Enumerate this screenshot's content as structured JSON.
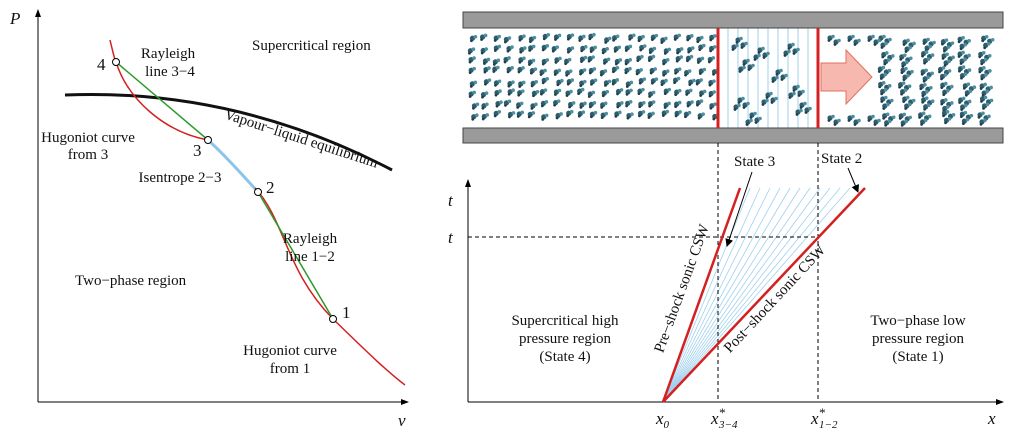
{
  "left": {
    "axis_y": "P",
    "axis_x": "v",
    "supercritical": "Supercritical region",
    "rayleigh_34": [
      "Rayleigh",
      "line 3−4"
    ],
    "vle": "Vapour−liquid equilibrium",
    "hugoniot_3": [
      "Hugoniot curve",
      "from 3"
    ],
    "isentrope": "Isentrope 2−3",
    "rayleigh_12": [
      "Rayleigh",
      "line 1−2"
    ],
    "two_phase": "Two−phase region",
    "hugoniot_1": [
      "Hugoniot curve",
      "from 1"
    ],
    "points": [
      "1",
      "2",
      "3",
      "4"
    ]
  },
  "right": {
    "state3": "State 3",
    "state2": "State 2",
    "axis_t": "t",
    "t_mark": "t",
    "axis_x": "x",
    "x0": {
      "main": "x",
      "sub": "0"
    },
    "x34": {
      "main": "x",
      "sup": "*",
      "sub": "3−4"
    },
    "x12": {
      "main": "x",
      "sup": "*",
      "sub": "1−2"
    },
    "pre_shock": "Pre−shock sonic CSW",
    "post_shock": "Post−shock sonic CSW",
    "region_left": [
      "Supercritical high",
      "pressure region",
      "(State 4)"
    ],
    "region_right": [
      "Two−phase low",
      "pressure region",
      "(State 1)"
    ]
  }
}
